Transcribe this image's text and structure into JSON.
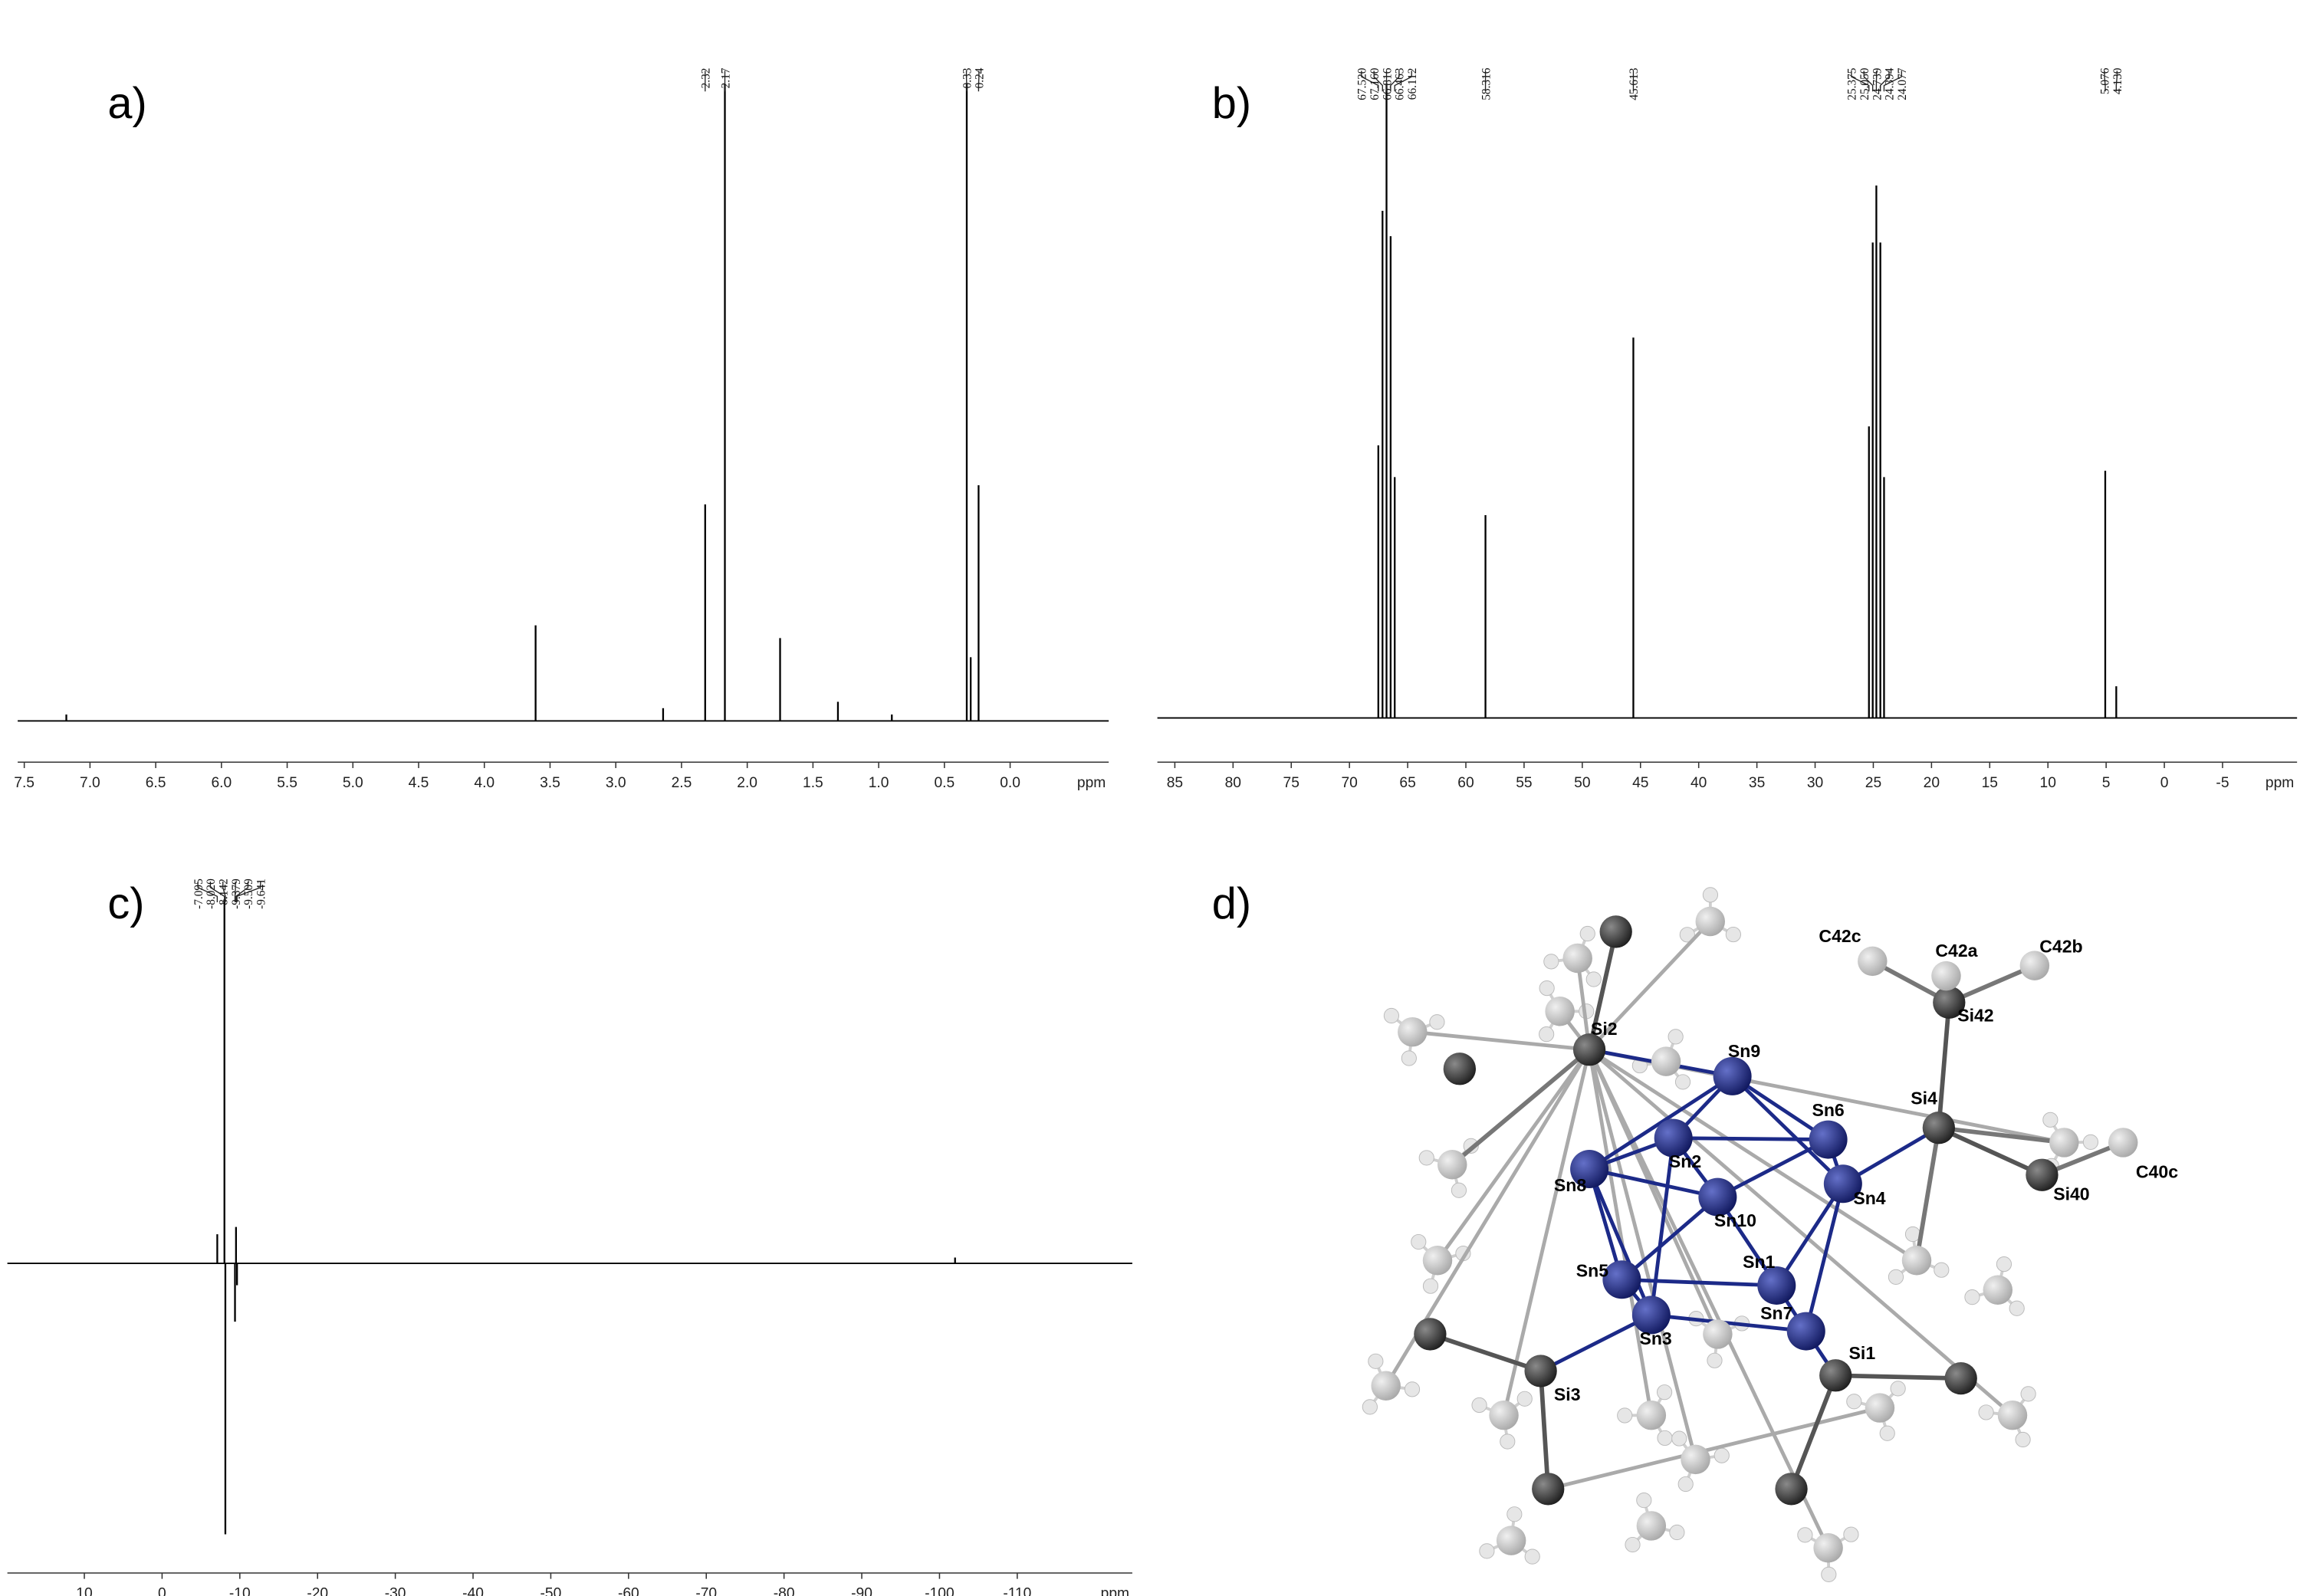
{
  "chart_data": [
    {
      "type": "spectrum",
      "label": "a)",
      "x_label": "ppm",
      "color": "#000000",
      "xlim": [
        7.55,
        -0.75
      ],
      "ylim": [
        0,
        100
      ],
      "xticks": [
        7.5,
        {
          "value": 7,
          "label": "7.0"
        },
        6.5,
        {
          "value": 6,
          "label": "6.0"
        },
        5.5,
        {
          "value": 5,
          "label": "5.0"
        },
        4.5,
        {
          "value": 4,
          "label": "4.0"
        },
        3.5,
        {
          "value": 3,
          "label": "3.0"
        },
        2.5,
        {
          "value": 2,
          "label": "2.0"
        },
        1.5,
        {
          "value": 1,
          "label": "1.0"
        },
        0.5,
        {
          "value": 0,
          "label": "0.0"
        }
      ],
      "x": [
        7.18,
        3.61,
        2.64,
        2.32,
        2.17,
        1.75,
        1.31,
        0.9,
        0.33,
        0.3,
        0.24
      ],
      "values": [
        1,
        15,
        2,
        34,
        100,
        13,
        3,
        1,
        100,
        10,
        37
      ],
      "annotations": [
        {
          "value": 2.32,
          "label": "2.32"
        },
        {
          "value": 2.17,
          "label": "2.17"
        },
        {
          "value": 0.33,
          "label": "0.33"
        },
        {
          "value": 0.24,
          "label": "0.24"
        }
      ]
    },
    {
      "type": "spectrum",
      "label": "b)",
      "x_label": "ppm",
      "color": "#000000",
      "xlim": [
        86.5,
        -11.4
      ],
      "ylim": [
        0,
        100
      ],
      "xticks": [
        85,
        80,
        75,
        70,
        65,
        60,
        55,
        50,
        45,
        40,
        35,
        30,
        25,
        20,
        15,
        10,
        5,
        0,
        -5
      ],
      "x": [
        67.52,
        67.16,
        66.816,
        66.463,
        66.112,
        58.316,
        45.613,
        25.375,
        25.05,
        24.739,
        24.394,
        24.077,
        5.076,
        4.13
      ],
      "values": [
        43,
        80,
        100,
        76,
        38,
        32,
        60,
        46,
        75,
        84,
        75,
        38,
        39,
        5
      ],
      "annotations": [
        {
          "value": 67.52,
          "label": "67.520"
        },
        {
          "value": 67.16,
          "label": "67.160"
        },
        {
          "value": 66.816,
          "label": "66.816"
        },
        {
          "value": 66.463,
          "label": "66.463"
        },
        {
          "value": 66.112,
          "label": "66.112"
        },
        {
          "value": 58.316,
          "label": "58.316"
        },
        {
          "value": 45.613,
          "label": "45.613"
        },
        {
          "value": 25.375,
          "label": "25.375"
        },
        {
          "value": 25.05,
          "label": "25.050"
        },
        {
          "value": 24.739,
          "label": "24.739"
        },
        {
          "value": 24.394,
          "label": "24.394"
        },
        {
          "value": 24.077,
          "label": "24.077"
        },
        {
          "value": 5.076,
          "label": "5.076"
        },
        {
          "value": 4.13,
          "label": "4.130"
        }
      ]
    },
    {
      "type": "spectrum",
      "label": "c)",
      "x_label": "ppm",
      "color": "#000000",
      "xlim": [
        19.9,
        -124.8
      ],
      "ylim": [
        -190,
        250
      ],
      "xticks": [
        10,
        0,
        -10,
        -20,
        -30,
        -40,
        -50,
        -60,
        -70,
        -80,
        -90,
        -100,
        -110
      ],
      "x": [
        -7.1,
        -8.02,
        -8.14,
        -9.38,
        -9.51,
        -9.64,
        -102
      ],
      "values": [
        20,
        250,
        -186,
        -40,
        25,
        -15,
        4
      ],
      "annotations": [
        {
          "value": -7.095,
          "label": "-7.095"
        },
        {
          "value": -8.02,
          "label": "-8.020"
        },
        {
          "value": -8.142,
          "label": "-8.142"
        },
        {
          "value": -9.379,
          "label": "-9.379"
        },
        {
          "value": -9.509,
          "label": "-9.509"
        },
        {
          "value": -9.641,
          "label": "-9.641"
        }
      ]
    }
  ],
  "structure": {
    "label": "d)",
    "atoms": [
      "Sn9",
      "Sn6",
      "Sn2",
      "Sn8",
      "Sn10",
      "Sn4",
      "Sn5",
      "Sn1",
      "Sn3",
      "Sn7",
      "Si2",
      "Si4",
      "Si40",
      "Si42",
      "Si1",
      "Si3",
      "C42c",
      "C42a",
      "C42b",
      "C40c"
    ]
  }
}
